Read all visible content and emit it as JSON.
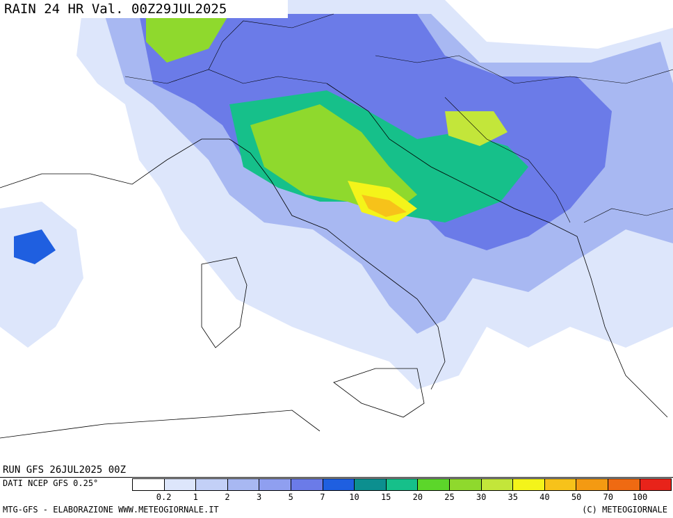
{
  "header": {
    "title": "RAIN 24 HR Val. 00Z29JUL2025"
  },
  "run": {
    "text": "RUN GFS 26JUL2025 00Z"
  },
  "source": {
    "text": "DATI NCEP GFS 0.25°"
  },
  "footer": {
    "left": "MTG-GFS - ELABORAZIONE WWW.METEOGIORNALE.IT",
    "right": "(C) METEOGIORNALE"
  },
  "legend": {
    "thresholds": [
      "0.2",
      "1",
      "2",
      "3",
      "5",
      "7",
      "10",
      "15",
      "20",
      "25",
      "30",
      "35",
      "40",
      "50",
      "70",
      "100"
    ],
    "colors": [
      "#ffffff",
      "#dde6fb",
      "#c3d0f7",
      "#a8b8f2",
      "#8f9ff0",
      "#6b7be8",
      "#1f5fe0",
      "#0c8f8f",
      "#16c08a",
      "#5cd62a",
      "#8fd92d",
      "#c3e63a",
      "#f4f41a",
      "#f7c21a",
      "#f49a12",
      "#ef6a12",
      "#e8231a"
    ]
  }
}
